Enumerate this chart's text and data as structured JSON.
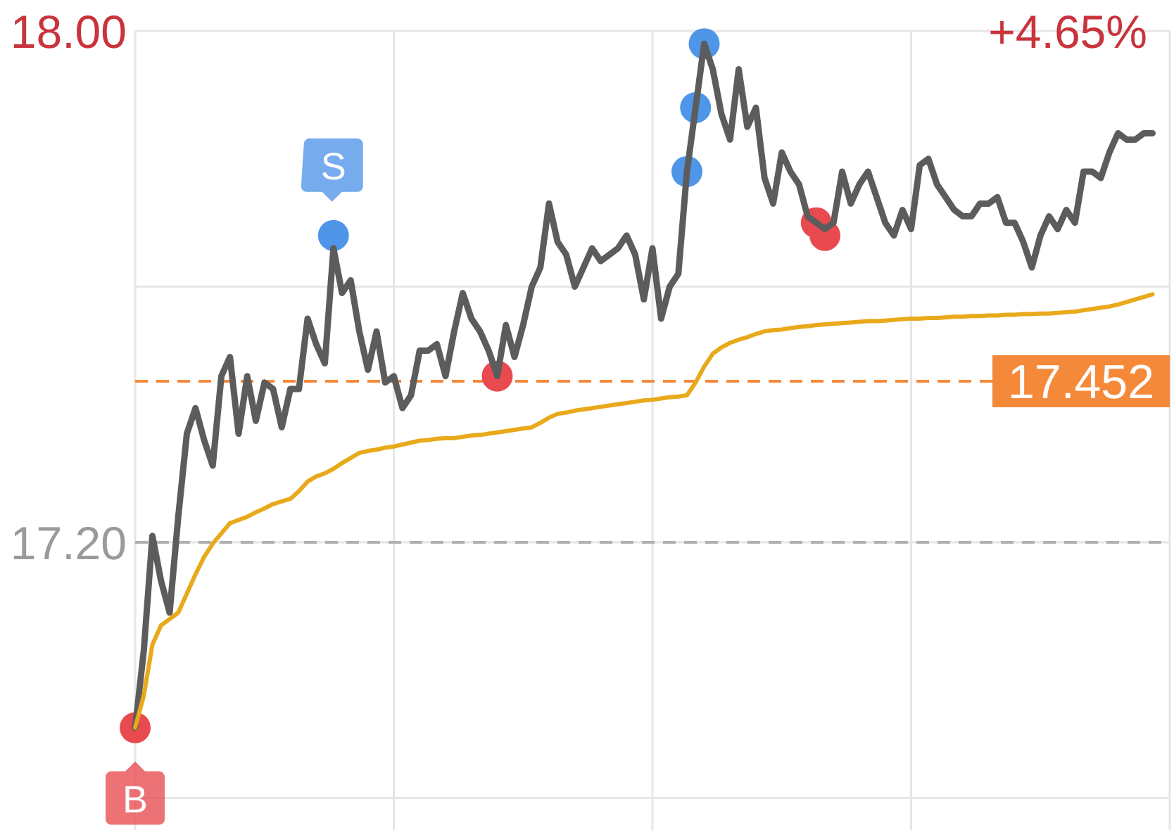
{
  "chart_data": {
    "type": "line",
    "categories": [
      null,
      null,
      null,
      null,
      null,
      null,
      null,
      null,
      null,
      null,
      null,
      null,
      null,
      null,
      null,
      null,
      null,
      null,
      null,
      null,
      null,
      null,
      null,
      null,
      null,
      null,
      null,
      null,
      null,
      null,
      null,
      null,
      null,
      null,
      null,
      null,
      null,
      null,
      null,
      null,
      null,
      null,
      null,
      null,
      null,
      null,
      null,
      null,
      null,
      null,
      null,
      null,
      null,
      null,
      null,
      null,
      null,
      null,
      null,
      null,
      null,
      null,
      null,
      null,
      null,
      null,
      null,
      null,
      null,
      null,
      null,
      null,
      null,
      null,
      null,
      null,
      null,
      null,
      null,
      null,
      null,
      null,
      null,
      null,
      null,
      null,
      null,
      null,
      null,
      null,
      null,
      null,
      null,
      null,
      null,
      null,
      null,
      null,
      null,
      null,
      null,
      null,
      null,
      null,
      null,
      null,
      null,
      null,
      null,
      null,
      null,
      null,
      null,
      null,
      null,
      null,
      null,
      null,
      null,
      null,
      null
    ],
    "ylim": [
      16.75,
      18.0
    ],
    "yticks": [
      {
        "value": 18,
        "label": "18.00"
      },
      {
        "value": 17.6,
        "label": null
      },
      {
        "value": 17.2,
        "label": "17.20"
      },
      {
        "value": 16.8,
        "label": null
      }
    ],
    "grid": true,
    "tick_labels": "y",
    "series": [
      {
        "color": "#5c5c5c",
        "values": [
          16.91,
          17.03,
          17.21,
          17.14,
          17.09,
          17.24,
          17.37,
          17.41,
          17.36,
          17.32,
          17.46,
          17.49,
          17.37,
          17.46,
          17.39,
          17.45,
          17.44,
          17.38,
          17.44,
          17.44,
          17.55,
          17.51,
          17.48,
          17.66,
          17.59,
          17.61,
          17.53,
          17.47,
          17.53,
          17.45,
          17.46,
          17.41,
          17.43,
          17.5,
          17.5,
          17.51,
          17.46,
          17.53,
          17.59,
          17.55,
          17.53,
          17.5,
          17.46,
          17.54,
          17.49,
          17.54,
          17.6,
          17.63,
          17.73,
          17.67,
          17.65,
          17.6,
          17.63,
          17.66,
          17.64,
          17.65,
          17.66,
          17.68,
          17.65,
          17.58,
          17.66,
          17.55,
          17.6,
          17.62,
          17.78,
          17.88,
          17.98,
          17.94,
          17.87,
          17.83,
          17.94,
          17.85,
          17.88,
          17.77,
          17.73,
          17.81,
          17.78,
          17.76,
          17.71,
          17.7,
          17.69,
          17.7,
          17.78,
          17.73,
          17.76,
          17.78,
          17.74,
          17.7,
          17.68,
          17.72,
          17.69,
          17.79,
          17.8,
          17.76,
          17.74,
          17.72,
          17.71,
          17.71,
          17.73,
          17.73,
          17.74,
          17.7,
          17.7,
          17.67,
          17.63,
          17.68,
          17.71,
          17.69,
          17.72,
          17.7,
          17.78,
          17.78,
          17.77,
          17.81,
          17.84,
          17.83,
          17.83,
          17.84,
          17.84,
          null,
          null
        ]
      },
      {
        "color": "#e8a91b",
        "values": [
          16.91,
          16.96,
          17.04,
          17.07,
          17.08,
          17.09,
          17.12,
          17.15,
          17.177,
          17.198,
          17.214,
          17.23,
          17.235,
          17.24,
          17.247,
          17.253,
          17.26,
          17.264,
          17.268,
          17.28,
          17.295,
          17.303,
          17.308,
          17.315,
          17.324,
          17.332,
          17.34,
          17.343,
          17.345,
          17.348,
          17.35,
          17.353,
          17.356,
          17.359,
          17.36,
          17.362,
          17.363,
          17.363,
          17.365,
          17.367,
          17.368,
          17.37,
          17.372,
          17.374,
          17.376,
          17.378,
          17.38,
          17.387,
          17.395,
          17.401,
          17.403,
          17.406,
          17.408,
          17.41,
          17.412,
          17.414,
          17.416,
          17.418,
          17.42,
          17.422,
          17.423,
          17.425,
          17.427,
          17.428,
          17.43,
          17.45,
          17.475,
          17.495,
          17.505,
          17.512,
          17.517,
          17.521,
          17.526,
          17.53,
          17.532,
          17.533,
          17.535,
          17.537,
          17.538,
          17.54,
          17.541,
          17.542,
          17.543,
          17.544,
          17.545,
          17.546,
          17.546,
          17.547,
          17.548,
          17.549,
          17.55,
          17.55,
          17.551,
          17.551,
          17.552,
          17.553,
          17.553,
          17.554,
          17.554,
          17.555,
          17.555,
          17.556,
          17.556,
          17.557,
          17.557,
          17.558,
          17.558,
          17.559,
          17.56,
          17.561,
          17.563,
          17.565,
          17.567,
          17.569,
          17.572,
          17.576,
          17.58,
          17.584,
          17.588,
          null,
          null
        ]
      },
      {
        "type": "scatter",
        "marker": "circle",
        "color": "#4f95e8",
        "values": [
          null,
          null,
          null,
          null,
          null,
          null,
          null,
          null,
          null,
          null,
          null,
          null,
          null,
          null,
          null,
          null,
          null,
          null,
          null,
          null,
          null,
          null,
          null,
          17.68,
          null,
          null,
          null,
          null,
          null,
          null,
          null,
          null,
          null,
          null,
          null,
          null,
          null,
          null,
          null,
          null,
          null,
          null,
          null,
          null,
          null,
          null,
          null,
          null,
          null,
          null,
          null,
          null,
          null,
          null,
          null,
          null,
          null,
          null,
          null,
          null,
          null,
          null,
          null,
          null,
          17.78,
          17.88,
          17.98,
          null,
          null,
          null,
          null,
          null,
          null,
          null,
          null,
          null,
          null,
          null,
          null,
          null,
          null,
          null,
          null,
          null,
          null,
          null,
          null,
          null,
          null,
          null,
          null,
          null,
          null,
          null,
          null,
          null,
          null,
          null,
          null,
          null,
          null,
          null,
          null,
          null,
          null,
          null,
          null,
          null,
          null,
          null,
          null,
          null,
          null,
          null,
          null,
          null,
          null,
          null,
          null,
          null,
          null
        ]
      },
      {
        "type": "scatter",
        "marker": "circle",
        "color": "#e84a4f",
        "values": [
          16.91,
          null,
          null,
          null,
          null,
          null,
          null,
          null,
          null,
          null,
          null,
          null,
          null,
          null,
          null,
          null,
          null,
          null,
          null,
          null,
          null,
          null,
          null,
          null,
          null,
          null,
          null,
          null,
          null,
          null,
          null,
          null,
          null,
          null,
          null,
          null,
          null,
          null,
          null,
          null,
          null,
          null,
          17.46,
          null,
          null,
          null,
          null,
          null,
          null,
          null,
          null,
          null,
          null,
          null,
          null,
          null,
          null,
          null,
          null,
          null,
          null,
          null,
          null,
          null,
          null,
          null,
          null,
          null,
          null,
          null,
          null,
          null,
          null,
          null,
          null,
          null,
          null,
          null,
          null,
          17.7,
          17.68,
          null,
          null,
          null,
          null,
          null,
          null,
          null,
          null,
          null,
          null,
          null,
          null,
          null,
          null,
          null,
          null,
          null,
          null,
          null,
          null,
          null,
          null,
          null,
          null,
          null,
          null,
          null,
          null,
          null,
          null,
          null,
          null,
          null,
          null,
          null,
          null,
          null,
          null,
          null,
          null
        ]
      }
    ],
    "ref_lines": [
      {
        "axis": "y",
        "value": 17.452,
        "label": "17.452",
        "color": "#f5893a",
        "line_style": "dashed"
      },
      {
        "axis": "y",
        "value": 17.2,
        "color": "#b0b0b0",
        "line_style": "dashed"
      }
    ],
    "annotations": [
      "+4.65%",
      {
        "text": "B",
        "y": 16.91
      },
      {
        "text": "S",
        "y": 17.68
      }
    ]
  }
}
